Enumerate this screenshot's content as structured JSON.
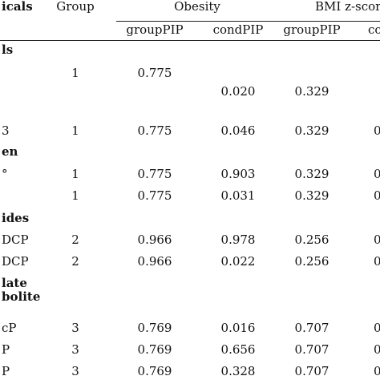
{
  "header": {
    "col_chemicals": "icals",
    "col_group": "Group",
    "col_obesity": "Obesity",
    "col_bmi": "BMI z-scor",
    "sub_grouppip_1": "groupPIP",
    "sub_condpip_1": "condPIP",
    "sub_grouppip_2": "groupPIP",
    "sub_condpip_2": "cor"
  },
  "sections": {
    "s1": "ls",
    "s2": "en",
    "s3": "ides",
    "s4_line1": "late",
    "s4_line2": "bolite"
  },
  "rows": [
    {
      "label": "",
      "group": "1",
      "ob_group": "0.775",
      "ob_cond": "",
      "bmi_group": "",
      "bmi_cond": ""
    },
    {
      "label": "",
      "group": "",
      "ob_group": "",
      "ob_cond": "0.020",
      "bmi_group": "0.329",
      "bmi_cond": ""
    },
    {
      "label": "3",
      "group": "1",
      "ob_group": "0.775",
      "ob_cond": "0.046",
      "bmi_group": "0.329",
      "bmi_cond": "0"
    },
    {
      "label": "°",
      "group": "1",
      "ob_group": "0.775",
      "ob_cond": "0.903",
      "bmi_group": "0.329",
      "bmi_cond": "0"
    },
    {
      "label": "",
      "group": "1",
      "ob_group": "0.775",
      "ob_cond": "0.031",
      "bmi_group": "0.329",
      "bmi_cond": "0"
    },
    {
      "label": "DCP",
      "group": "2",
      "ob_group": "0.966",
      "ob_cond": "0.978",
      "bmi_group": "0.256",
      "bmi_cond": "0"
    },
    {
      "label": "DCP",
      "group": "2",
      "ob_group": "0.966",
      "ob_cond": "0.022",
      "bmi_group": "0.256",
      "bmi_cond": "0"
    },
    {
      "label": "cP",
      "group": "3",
      "ob_group": "0.769",
      "ob_cond": "0.016",
      "bmi_group": "0.707",
      "bmi_cond": "0"
    },
    {
      "label": "P",
      "group": "3",
      "ob_group": "0.769",
      "ob_cond": "0.656",
      "bmi_group": "0.707",
      "bmi_cond": "0"
    },
    {
      "label": "P",
      "group": "3",
      "ob_group": "0.769",
      "ob_cond": "0.328",
      "bmi_group": "0.707",
      "bmi_cond": "0"
    }
  ]
}
